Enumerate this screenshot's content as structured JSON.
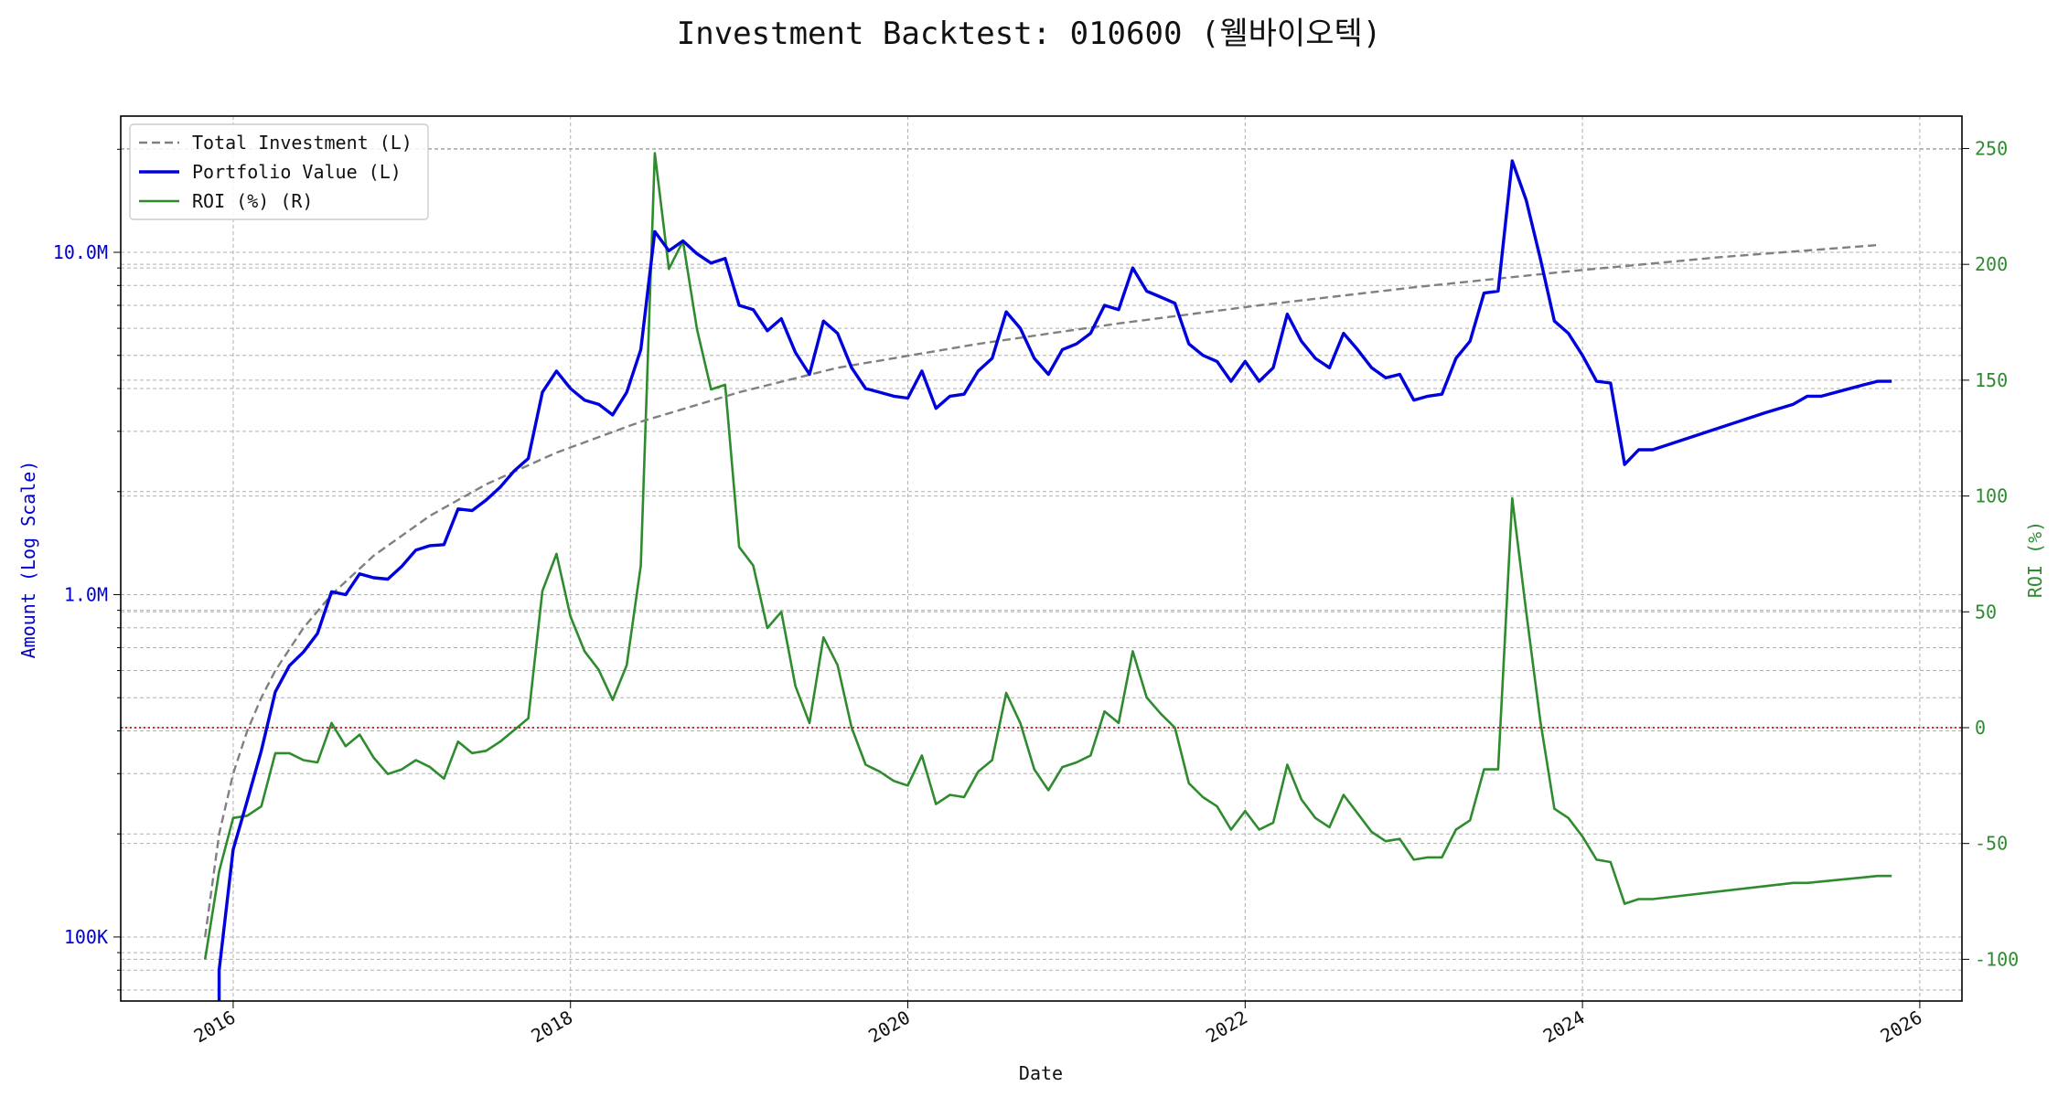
{
  "chart_data": {
    "type": "line",
    "title": "Investment Backtest: 010600 (웰바이오텍)",
    "xlabel": "Date",
    "ylabel_left": "Amount (Log Scale)",
    "ylabel_right": "ROI (%)",
    "x_ticks": [
      "2016",
      "2018",
      "2020",
      "2022",
      "2024",
      "2026"
    ],
    "y_left_ticks": [
      "100K",
      "1.0M",
      "10.0M"
    ],
    "y_right_ticks": [
      "-100",
      "-50",
      "0",
      "50",
      "100",
      "150",
      "200",
      "250"
    ],
    "y_left_scale": "log",
    "y_left_range": [
      65000,
      25000000
    ],
    "y_right_range": [
      -118,
      264
    ],
    "x_range": [
      "2015-05-01",
      "2026-04-01"
    ],
    "grid": true,
    "legend_position": "top-left",
    "reference_line": {
      "axis": "right",
      "value": 0,
      "style": "dotted",
      "color": "#cc0000"
    },
    "series": [
      {
        "name": "Total Investment (L)",
        "axis": "left",
        "color": "#808080",
        "style": "dashed",
        "points": [
          [
            "2015-11",
            100000
          ],
          [
            "2015-12",
            200000
          ],
          [
            "2016-01",
            300000
          ],
          [
            "2016-02",
            400000
          ],
          [
            "2016-03",
            500000
          ],
          [
            "2016-04",
            600000
          ],
          [
            "2016-06",
            800000
          ],
          [
            "2016-08",
            1000000
          ],
          [
            "2016-11",
            1300000
          ],
          [
            "2017-03",
            1700000
          ],
          [
            "2017-07",
            2100000
          ],
          [
            "2017-12",
            2600000
          ],
          [
            "2018-06",
            3200000
          ],
          [
            "2019-01",
            3900000
          ],
          [
            "2019-08",
            4600000
          ],
          [
            "2020-06",
            5400000
          ],
          [
            "2021-04",
            6200000
          ],
          [
            "2022-02",
            7000000
          ],
          [
            "2023-01",
            7900000
          ],
          [
            "2023-12",
            8800000
          ],
          [
            "2024-11",
            9700000
          ],
          [
            "2025-10",
            10500000
          ]
        ]
      },
      {
        "name": "Portfolio Value (L)",
        "axis": "left",
        "color": "#0000dd",
        "style": "solid",
        "points": [
          [
            "2015-12",
            80000
          ],
          [
            "2016-01",
            180000
          ],
          [
            "2016-02",
            250000
          ],
          [
            "2016-03",
            350000
          ],
          [
            "2016-04",
            520000
          ],
          [
            "2016-05",
            620000
          ],
          [
            "2016-06",
            680000
          ],
          [
            "2016-07",
            770000
          ],
          [
            "2016-08",
            1020000
          ],
          [
            "2016-09",
            1000000
          ],
          [
            "2016-10",
            1150000
          ],
          [
            "2016-11",
            1120000
          ],
          [
            "2016-12",
            1110000
          ],
          [
            "2017-01",
            1210000
          ],
          [
            "2017-02",
            1350000
          ],
          [
            "2017-03",
            1390000
          ],
          [
            "2017-04",
            1400000
          ],
          [
            "2017-05",
            1780000
          ],
          [
            "2017-06",
            1760000
          ],
          [
            "2017-07",
            1890000
          ],
          [
            "2017-08",
            2060000
          ],
          [
            "2017-09",
            2300000
          ],
          [
            "2017-10",
            2500000
          ],
          [
            "2017-11",
            3900000
          ],
          [
            "2017-12",
            4500000
          ],
          [
            "2018-01",
            4000000
          ],
          [
            "2018-02",
            3700000
          ],
          [
            "2018-03",
            3600000
          ],
          [
            "2018-04",
            3350000
          ],
          [
            "2018-05",
            3900000
          ],
          [
            "2018-06",
            5200000
          ],
          [
            "2018-07",
            11500000
          ],
          [
            "2018-08",
            10100000
          ],
          [
            "2018-09",
            10800000
          ],
          [
            "2018-10",
            9900000
          ],
          [
            "2018-11",
            9300000
          ],
          [
            "2018-12",
            9600000
          ],
          [
            "2019-01",
            7000000
          ],
          [
            "2019-02",
            6800000
          ],
          [
            "2019-03",
            5900000
          ],
          [
            "2019-04",
            6400000
          ],
          [
            "2019-05",
            5100000
          ],
          [
            "2019-06",
            4400000
          ],
          [
            "2019-07",
            6300000
          ],
          [
            "2019-08",
            5800000
          ],
          [
            "2019-09",
            4600000
          ],
          [
            "2019-10",
            4000000
          ],
          [
            "2019-11",
            3900000
          ],
          [
            "2019-12",
            3800000
          ],
          [
            "2020-01",
            3750000
          ],
          [
            "2020-02",
            4500000
          ],
          [
            "2020-03",
            3500000
          ],
          [
            "2020-04",
            3800000
          ],
          [
            "2020-05",
            3850000
          ],
          [
            "2020-06",
            4500000
          ],
          [
            "2020-07",
            4900000
          ],
          [
            "2020-08",
            6700000
          ],
          [
            "2020-09",
            6000000
          ],
          [
            "2020-10",
            4900000
          ],
          [
            "2020-11",
            4400000
          ],
          [
            "2020-12",
            5200000
          ],
          [
            "2021-01",
            5400000
          ],
          [
            "2021-02",
            5800000
          ],
          [
            "2021-03",
            7000000
          ],
          [
            "2021-04",
            6800000
          ],
          [
            "2021-05",
            9000000
          ],
          [
            "2021-06",
            7700000
          ],
          [
            "2021-07",
            7400000
          ],
          [
            "2021-08",
            7100000
          ],
          [
            "2021-09",
            5400000
          ],
          [
            "2021-10",
            5000000
          ],
          [
            "2021-11",
            4800000
          ],
          [
            "2021-12",
            4200000
          ],
          [
            "2022-01",
            4800000
          ],
          [
            "2022-02",
            4200000
          ],
          [
            "2022-03",
            4600000
          ],
          [
            "2022-04",
            6600000
          ],
          [
            "2022-05",
            5500000
          ],
          [
            "2022-06",
            4900000
          ],
          [
            "2022-07",
            4600000
          ],
          [
            "2022-08",
            5800000
          ],
          [
            "2022-09",
            5200000
          ],
          [
            "2022-10",
            4600000
          ],
          [
            "2022-11",
            4300000
          ],
          [
            "2022-12",
            4400000
          ],
          [
            "2023-01",
            3700000
          ],
          [
            "2023-02",
            3800000
          ],
          [
            "2023-03",
            3850000
          ],
          [
            "2023-04",
            4900000
          ],
          [
            "2023-05",
            5500000
          ],
          [
            "2023-06",
            7600000
          ],
          [
            "2023-07",
            7700000
          ],
          [
            "2023-08",
            18500000
          ],
          [
            "2023-09",
            14200000
          ],
          [
            "2023-10",
            9600000
          ],
          [
            "2023-11",
            6300000
          ],
          [
            "2023-12",
            5800000
          ],
          [
            "2024-01",
            5000000
          ],
          [
            "2024-02",
            4200000
          ],
          [
            "2024-03",
            4150000
          ],
          [
            "2024-04",
            2400000
          ],
          [
            "2024-05",
            2650000
          ],
          [
            "2024-06",
            2650000
          ],
          [
            "2024-10",
            3000000
          ],
          [
            "2025-02",
            3400000
          ],
          [
            "2025-04",
            3600000
          ],
          [
            "2025-05",
            3800000
          ],
          [
            "2025-06",
            3800000
          ],
          [
            "2025-09",
            4100000
          ],
          [
            "2025-10",
            4200000
          ],
          [
            "2025-11",
            4200000
          ]
        ]
      },
      {
        "name": "ROI (%) (R)",
        "axis": "right",
        "color": "#2e8b2e",
        "style": "solid",
        "points": [
          [
            "2015-11",
            -100
          ],
          [
            "2015-12",
            -62
          ],
          [
            "2016-01",
            -39
          ],
          [
            "2016-02",
            -38
          ],
          [
            "2016-03",
            -34
          ],
          [
            "2016-04",
            -11
          ],
          [
            "2016-05",
            -11
          ],
          [
            "2016-06",
            -14
          ],
          [
            "2016-07",
            -15
          ],
          [
            "2016-08",
            2
          ],
          [
            "2016-09",
            -8
          ],
          [
            "2016-10",
            -3
          ],
          [
            "2016-11",
            -13
          ],
          [
            "2016-12",
            -20
          ],
          [
            "2017-01",
            -18
          ],
          [
            "2017-02",
            -14
          ],
          [
            "2017-03",
            -17
          ],
          [
            "2017-04",
            -22
          ],
          [
            "2017-05",
            -6
          ],
          [
            "2017-06",
            -11
          ],
          [
            "2017-07",
            -10
          ],
          [
            "2017-08",
            -6
          ],
          [
            "2017-09",
            -1
          ],
          [
            "2017-10",
            4
          ],
          [
            "2017-11",
            59
          ],
          [
            "2017-12",
            75
          ],
          [
            "2018-01",
            48
          ],
          [
            "2018-02",
            33
          ],
          [
            "2018-03",
            25
          ],
          [
            "2018-04",
            12
          ],
          [
            "2018-05",
            27
          ],
          [
            "2018-06",
            70
          ],
          [
            "2018-07",
            248
          ],
          [
            "2018-08",
            198
          ],
          [
            "2018-09",
            210
          ],
          [
            "2018-10",
            172
          ],
          [
            "2018-11",
            146
          ],
          [
            "2018-12",
            148
          ],
          [
            "2019-01",
            78
          ],
          [
            "2019-02",
            70
          ],
          [
            "2019-03",
            43
          ],
          [
            "2019-04",
            50
          ],
          [
            "2019-05",
            18
          ],
          [
            "2019-06",
            2
          ],
          [
            "2019-07",
            39
          ],
          [
            "2019-08",
            27
          ],
          [
            "2019-09",
            0
          ],
          [
            "2019-10",
            -16
          ],
          [
            "2019-11",
            -19
          ],
          [
            "2019-12",
            -23
          ],
          [
            "2020-01",
            -25
          ],
          [
            "2020-02",
            -12
          ],
          [
            "2020-03",
            -33
          ],
          [
            "2020-04",
            -29
          ],
          [
            "2020-05",
            -30
          ],
          [
            "2020-06",
            -19
          ],
          [
            "2020-07",
            -14
          ],
          [
            "2020-08",
            15
          ],
          [
            "2020-09",
            2
          ],
          [
            "2020-10",
            -18
          ],
          [
            "2020-11",
            -27
          ],
          [
            "2020-12",
            -17
          ],
          [
            "2021-01",
            -15
          ],
          [
            "2021-02",
            -12
          ],
          [
            "2021-03",
            7
          ],
          [
            "2021-04",
            2
          ],
          [
            "2021-05",
            33
          ],
          [
            "2021-06",
            13
          ],
          [
            "2021-07",
            6
          ],
          [
            "2021-08",
            0
          ],
          [
            "2021-09",
            -24
          ],
          [
            "2021-10",
            -30
          ],
          [
            "2021-11",
            -34
          ],
          [
            "2021-12",
            -44
          ],
          [
            "2022-01",
            -36
          ],
          [
            "2022-02",
            -44
          ],
          [
            "2022-03",
            -41
          ],
          [
            "2022-04",
            -16
          ],
          [
            "2022-05",
            -31
          ],
          [
            "2022-06",
            -39
          ],
          [
            "2022-07",
            -43
          ],
          [
            "2022-08",
            -29
          ],
          [
            "2022-09",
            -37
          ],
          [
            "2022-10",
            -45
          ],
          [
            "2022-11",
            -49
          ],
          [
            "2022-12",
            -48
          ],
          [
            "2023-01",
            -57
          ],
          [
            "2023-02",
            -56
          ],
          [
            "2023-03",
            -56
          ],
          [
            "2023-04",
            -44
          ],
          [
            "2023-05",
            -40
          ],
          [
            "2023-06",
            -18
          ],
          [
            "2023-07",
            -18
          ],
          [
            "2023-08",
            99
          ],
          [
            "2023-09",
            50
          ],
          [
            "2023-10",
            3
          ],
          [
            "2023-11",
            -35
          ],
          [
            "2023-12",
            -39
          ],
          [
            "2024-01",
            -47
          ],
          [
            "2024-02",
            -57
          ],
          [
            "2024-03",
            -58
          ],
          [
            "2024-04",
            -76
          ],
          [
            "2024-05",
            -74
          ],
          [
            "2024-06",
            -74
          ],
          [
            "2025-04",
            -67
          ],
          [
            "2025-05",
            -67
          ],
          [
            "2025-10",
            -64
          ],
          [
            "2025-11",
            -64
          ]
        ]
      }
    ]
  }
}
